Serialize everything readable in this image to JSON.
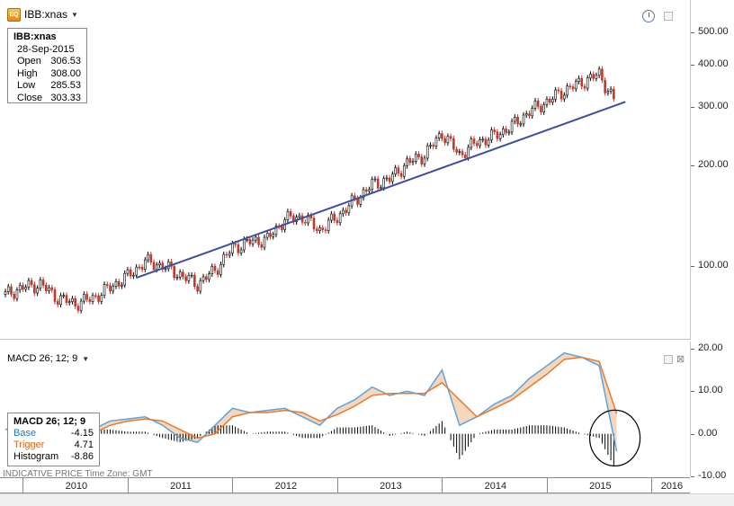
{
  "symbol": {
    "label": "IBB:xnas",
    "icon": "chart-symbol-icon"
  },
  "ohlc": {
    "title": "IBB:xnas",
    "date": "28-Sep-2015",
    "rows": [
      {
        "label": "Open",
        "value": "306.53"
      },
      {
        "label": "High",
        "value": "308.00"
      },
      {
        "label": "Low",
        "value": "285.53"
      },
      {
        "label": "Close",
        "value": "303.33"
      }
    ]
  },
  "price_axis": {
    "labels": [
      "500.00",
      "400.00",
      "300.00",
      "200.00",
      "100.00"
    ]
  },
  "macd": {
    "title": "MACD 26; 12; 9",
    "legend_title": "MACD 26; 12; 9",
    "rows": [
      {
        "label": "Base",
        "value": "-4.15",
        "color": "#1f77c9"
      },
      {
        "label": "Trigger",
        "value": "4.71",
        "color": "#e0671f"
      },
      {
        "label": "Histogram",
        "value": "-8.86",
        "color": "#000000"
      }
    ],
    "axis_labels": [
      "20.00",
      "10.00",
      "0.00",
      "-10.00"
    ]
  },
  "footer": {
    "text": "INDICATIVE PRICE  Time Zone: GMT"
  },
  "time_axis": {
    "years": [
      "2010",
      "2011",
      "2012",
      "2013",
      "2014",
      "2015",
      "2016"
    ]
  },
  "colors": {
    "trendline": "#3a4fa0",
    "candle_up": "#000000",
    "candle_down": "#c0392b",
    "macd_base": "#5ba3e0",
    "macd_trigger": "#e87a2e",
    "fill_between": "#f2c9a8",
    "annotation_circle": "#000000"
  },
  "chart_data": {
    "type": "line",
    "title": "IBB:xnas",
    "y_scale": "log",
    "ylim": [
      60,
      560
    ],
    "x": [
      "2009-11",
      "2010-01",
      "2010-03",
      "2010-05",
      "2010-07",
      "2010-09",
      "2010-11",
      "2011-01",
      "2011-03",
      "2011-05",
      "2011-07",
      "2011-09",
      "2011-11",
      "2012-01",
      "2012-03",
      "2012-05",
      "2012-07",
      "2012-09",
      "2012-11",
      "2013-01",
      "2013-03",
      "2013-05",
      "2013-07",
      "2013-09",
      "2013-11",
      "2014-01",
      "2014-03",
      "2014-05",
      "2014-07",
      "2014-09",
      "2014-11",
      "2015-01",
      "2015-03",
      "2015-05",
      "2015-07",
      "2015-09"
    ],
    "close": [
      82,
      86,
      88,
      80,
      77,
      80,
      86,
      93,
      103,
      100,
      94,
      88,
      97,
      113,
      118,
      120,
      138,
      140,
      128,
      140,
      157,
      175,
      182,
      203,
      215,
      250,
      215,
      235,
      245,
      262,
      290,
      310,
      335,
      355,
      375,
      303
    ],
    "macd_base": [
      1,
      2,
      1.5,
      -2,
      -1.5,
      1,
      3,
      3.5,
      4,
      2,
      -1,
      -2,
      2,
      6,
      5,
      5.5,
      6,
      4,
      2,
      6,
      8,
      11,
      9,
      10,
      9,
      15,
      2,
      4,
      7,
      9,
      13,
      16,
      19,
      18,
      16,
      -4.15
    ],
    "macd_trigger": [
      1,
      1.5,
      1.8,
      0,
      -1,
      0,
      2,
      3,
      3.5,
      3,
      1,
      -1,
      0,
      4,
      5,
      5,
      5.5,
      5,
      3,
      4.5,
      6.5,
      9,
      9.5,
      9.5,
      9.5,
      12,
      8,
      4,
      6,
      8,
      11,
      14,
      17.5,
      18,
      17,
      4.71
    ],
    "trendline": {
      "x": [
        "2011-02",
        "2015-10"
      ],
      "y": [
        92,
        310
      ]
    }
  }
}
